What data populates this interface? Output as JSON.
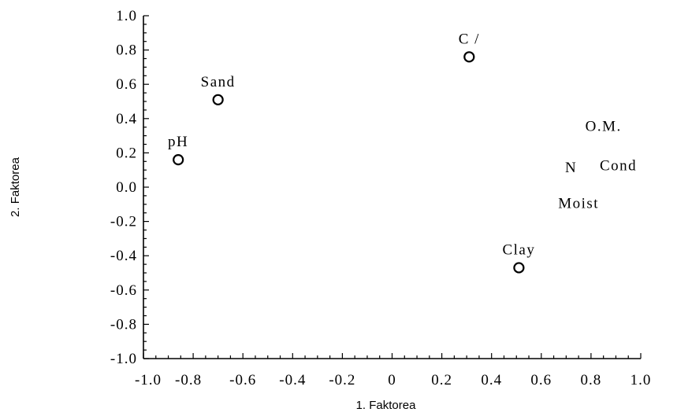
{
  "chart_data": {
    "type": "scatter",
    "title": "",
    "xlabel": "1.  Faktorea",
    "ylabel": "2. Faktorea",
    "xlim": [
      -1.0,
      1.0
    ],
    "ylim": [
      -1.0,
      1.0
    ],
    "grid": false,
    "x_tick_labels": [
      "-1.0",
      "-0.8",
      "-0.6",
      "-0.4",
      "-0.2",
      "0",
      "0.2",
      "0.4",
      "0.6",
      "0.8",
      "1.0"
    ],
    "x_tick_values": [
      -1.0,
      -0.8,
      -0.6,
      -0.4,
      -0.2,
      0,
      0.2,
      0.4,
      0.6,
      0.8,
      1.0
    ],
    "y_tick_labels": [
      "1.0",
      "0.8",
      "0.6",
      "0.4",
      "0.2",
      "0.0",
      "-0.2",
      "-0.4",
      "-0.6",
      "-0.8",
      "-1.0"
    ],
    "y_tick_values": [
      1.0,
      0.8,
      0.6,
      0.4,
      0.2,
      0.0,
      -0.2,
      -0.4,
      -0.6,
      -0.8,
      -1.0
    ],
    "points": [
      {
        "label": "pH",
        "x": -0.86,
        "y": 0.16,
        "marker": true
      },
      {
        "label": "Sand",
        "x": -0.7,
        "y": 0.51,
        "marker": true
      },
      {
        "label": "C /",
        "x": 0.31,
        "y": 0.76,
        "marker": true
      },
      {
        "label": "Clay",
        "x": 0.51,
        "y": -0.47,
        "marker": true
      },
      {
        "label": "O.M.",
        "x": 0.85,
        "y": 0.36,
        "marker": false
      },
      {
        "label": "N",
        "x": 0.72,
        "y": 0.12,
        "marker": false
      },
      {
        "label": "Cond",
        "x": 0.91,
        "y": 0.13,
        "marker": false
      },
      {
        "label": "Moist",
        "x": 0.75,
        "y": -0.09,
        "marker": false
      }
    ]
  }
}
